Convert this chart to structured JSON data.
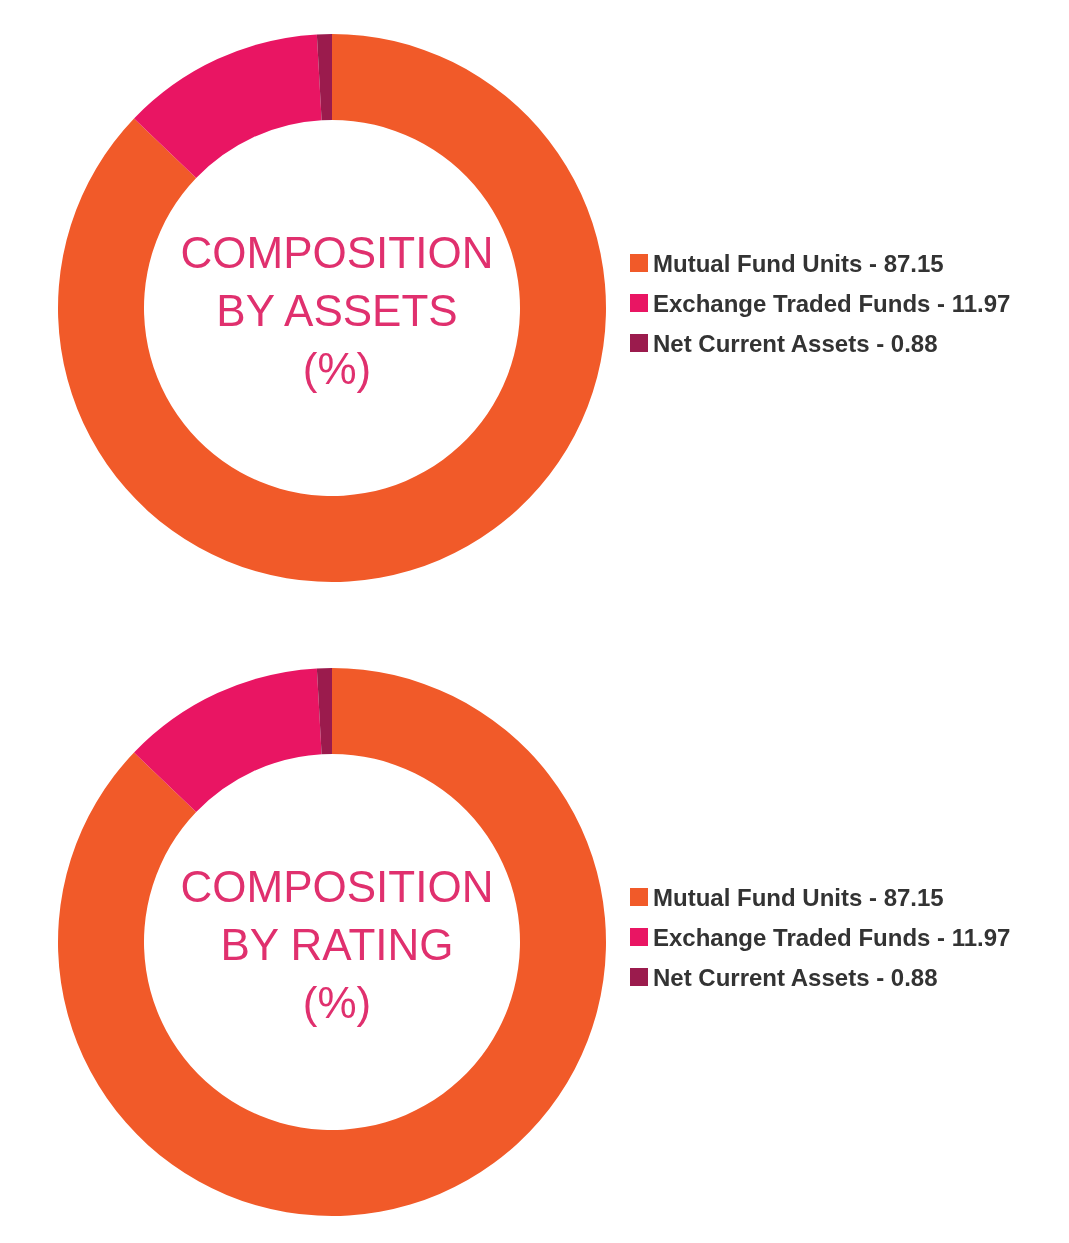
{
  "chart_data": [
    {
      "type": "donut",
      "title": "COMPOSITION BY ASSETS (%)",
      "categories": [
        "Mutual Fund Units - 87.15",
        "Exchange Traded Funds - 11.97",
        "Net Current Assets - 0.88"
      ],
      "values": [
        87.15,
        11.97,
        0.88
      ],
      "colors": [
        "#f15a29",
        "#e91563",
        "#9b1b4d"
      ],
      "legend": "right"
    },
    {
      "type": "donut",
      "title": "COMPOSITION BY RATING (%)",
      "categories": [
        "Mutual Fund Units - 87.15",
        "Exchange Traded Funds - 11.97",
        "Net Current Assets - 0.88"
      ],
      "values": [
        87.15,
        11.97,
        0.88
      ],
      "colors": [
        "#f15a29",
        "#e91563",
        "#9b1b4d"
      ],
      "legend": "right"
    }
  ]
}
